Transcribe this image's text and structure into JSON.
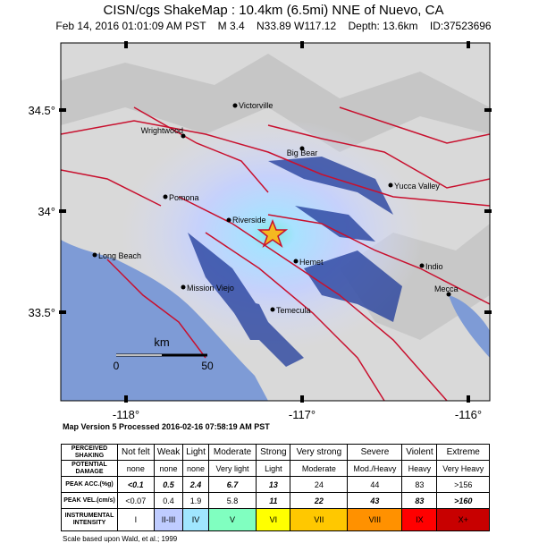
{
  "header": {
    "title": "CISN/cgs ShakeMap : 10.4km (6.5mi) NNE of Nuevo, CA",
    "subtitle": "Feb 14, 2016 01:01:09 AM PST    M 3.4    N33.89 W117.12    Depth: 13.6km    ID:37523696"
  },
  "map": {
    "lat_labels": [
      "34.5°",
      "34°",
      "33.5°"
    ],
    "lon_labels": [
      "-118°",
      "-117°",
      "-116°"
    ],
    "cities": [
      "Victorville",
      "Wrightwood",
      "Big Bear",
      "Pomona",
      "Yucca Valley",
      "Riverside",
      "Long Beach",
      "Hemet",
      "Indio",
      "Mission Viejo",
      "Temecula",
      "Mecca"
    ],
    "scale": {
      "unit": "km",
      "start": "0",
      "end": "50"
    }
  },
  "processing_note": "Map Version 5 Processed 2016-02-16 07:58:19 AM PST",
  "legend_table": {
    "rows": [
      {
        "label": "PERCEIVED SHAKING",
        "cells": [
          "Not felt",
          "Weak",
          "Light",
          "Moderate",
          "Strong",
          "Very strong",
          "Severe",
          "Violent",
          "Extreme"
        ]
      },
      {
        "label": "POTENTIAL DAMAGE",
        "cells": [
          "none",
          "none",
          "none",
          "Very light",
          "Light",
          "Moderate",
          "Mod./Heavy",
          "Heavy",
          "Very Heavy"
        ]
      },
      {
        "label": "PEAK ACC.(%g)",
        "cells": [
          "<0.1",
          "0.5",
          "2.4",
          "6.7",
          "13",
          "24",
          "44",
          "83",
          ">156"
        ]
      },
      {
        "label": "PEAK VEL.(cm/s)",
        "cells": [
          "<0.07",
          "0.4",
          "1.9",
          "5.8",
          "11",
          "22",
          "43",
          "83",
          ">160"
        ]
      },
      {
        "label": "INSTRUMENTAL INTENSITY",
        "cells": [
          "I",
          "II-III",
          "IV",
          "V",
          "VI",
          "VII",
          "VIII",
          "IX",
          "X+"
        ]
      }
    ]
  },
  "footnote": "Scale based upon Wald, et al.; 1999"
}
